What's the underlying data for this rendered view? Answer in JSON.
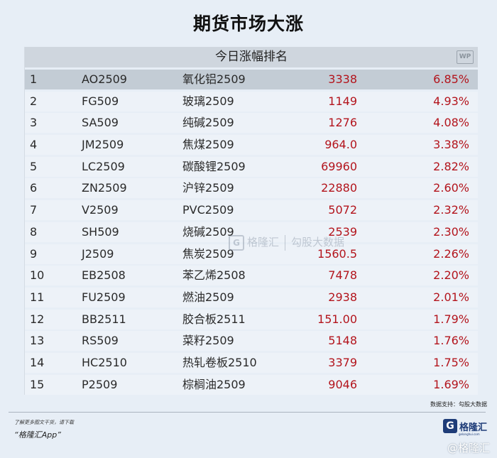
{
  "title": "期货市场大涨",
  "table_header": "今日涨幅排名",
  "header_icon": "WP",
  "rows": [
    {
      "rank": "1",
      "code": "AO2509",
      "name": "氧化铝2509",
      "price": "3338",
      "pct": "6.85%"
    },
    {
      "rank": "2",
      "code": "FG509",
      "name": "玻璃2509",
      "price": "1149",
      "pct": "4.93%"
    },
    {
      "rank": "3",
      "code": "SA509",
      "name": "纯碱2509",
      "price": "1276",
      "pct": "4.08%"
    },
    {
      "rank": "4",
      "code": "JM2509",
      "name": "焦煤2509",
      "price": "964.0",
      "pct": "3.38%"
    },
    {
      "rank": "5",
      "code": "LC2509",
      "name": "碳酸锂2509",
      "price": "69960",
      "pct": "2.82%"
    },
    {
      "rank": "6",
      "code": "ZN2509",
      "name": "沪锌2509",
      "price": "22880",
      "pct": "2.60%"
    },
    {
      "rank": "7",
      "code": "V2509",
      "name": "PVC2509",
      "price": "5072",
      "pct": "2.32%"
    },
    {
      "rank": "8",
      "code": "SH509",
      "name": "烧碱2509",
      "price": "2539",
      "pct": "2.30%"
    },
    {
      "rank": "9",
      "code": "J2509",
      "name": "焦炭2509",
      "price": "1560.5",
      "pct": "2.26%"
    },
    {
      "rank": "10",
      "code": "EB2508",
      "name": "苯乙烯2508",
      "price": "7478",
      "pct": "2.20%"
    },
    {
      "rank": "11",
      "code": "FU2509",
      "name": "燃油2509",
      "price": "2938",
      "pct": "2.01%"
    },
    {
      "rank": "12",
      "code": "BB2511",
      "name": "胶合板2511",
      "price": "151.00",
      "pct": "1.79%"
    },
    {
      "rank": "13",
      "code": "RS509",
      "name": "菜籽2509",
      "price": "5148",
      "pct": "1.76%"
    },
    {
      "rank": "14",
      "code": "HC2510",
      "name": "热轧卷板2510",
      "price": "3379",
      "pct": "1.75%"
    },
    {
      "rank": "15",
      "code": "P2509",
      "name": "棕榈油2509",
      "price": "9046",
      "pct": "1.69%"
    }
  ],
  "watermark": {
    "logo": "G",
    "brand": "格隆汇",
    "partner": "勾股大数据",
    "url": "www.gogudata.com"
  },
  "source": "数据支持：勾股大数据",
  "footer": {
    "note": "了解更多图文干货，请下载",
    "app": "“格隆汇App”",
    "brand_logo": "G",
    "brand": "格隆汇",
    "brand_sub": "gelonghui.com"
  },
  "corner_watermark": "@格隆汇",
  "colors": {
    "accent_red": "#b3141c",
    "header_bg": "#cfd6de",
    "row_bg": "#edf2f8",
    "brand_blue": "#1e3c78"
  }
}
